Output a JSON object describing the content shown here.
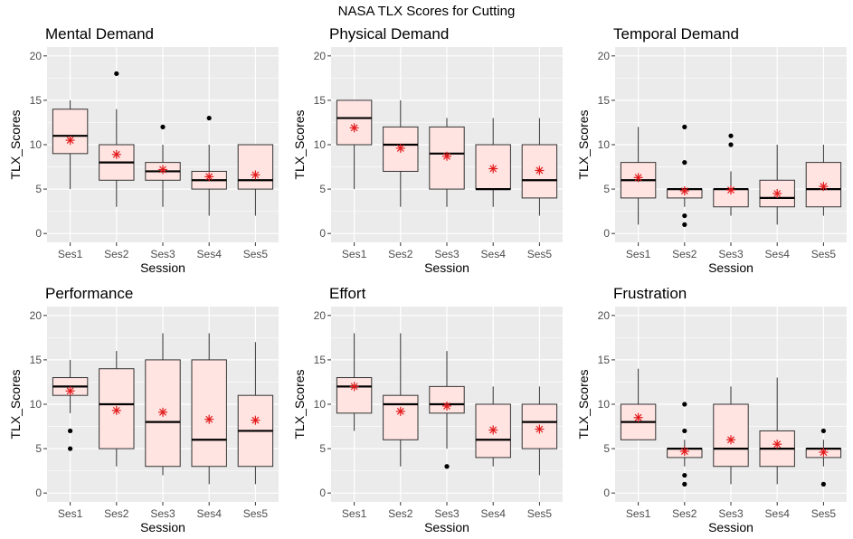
{
  "title": "NASA TLX Scores for Cutting",
  "chart_data": {
    "type": "boxplot",
    "title": "NASA TLX Scores for Cutting",
    "xlabel": "Session",
    "ylabel": "TLX_Scores",
    "categories": [
      "Ses1",
      "Ses2",
      "Ses3",
      "Ses4",
      "Ses5"
    ],
    "ylim": [
      -1,
      21
    ],
    "yticks": [
      0,
      5,
      10,
      15,
      20
    ],
    "grid": true,
    "colors": {
      "panel_bg": "#ebebeb",
      "grid": "#ffffff",
      "box_fill": "#ffe4e1",
      "mean_marker": "#e31a1c",
      "outline": "#000000"
    },
    "panels": [
      {
        "name": "Mental Demand",
        "boxes": [
          {
            "category": "Ses1",
            "whisker_low": 5,
            "q1": 9,
            "median": 11,
            "q3": 14,
            "whisker_high": 15,
            "mean": 10.5,
            "outliers": []
          },
          {
            "category": "Ses2",
            "whisker_low": 3,
            "q1": 6,
            "median": 8,
            "q3": 10,
            "whisker_high": 14,
            "mean": 8.9,
            "outliers": [
              18
            ]
          },
          {
            "category": "Ses3",
            "whisker_low": 3,
            "q1": 6,
            "median": 7,
            "q3": 8,
            "whisker_high": 10,
            "mean": 7.2,
            "outliers": [
              12
            ]
          },
          {
            "category": "Ses4",
            "whisker_low": 2,
            "q1": 5,
            "median": 6,
            "q3": 7,
            "whisker_high": 10,
            "mean": 6.4,
            "outliers": [
              13
            ]
          },
          {
            "category": "Ses5",
            "whisker_low": 2,
            "q1": 5,
            "median": 6,
            "q3": 10,
            "whisker_high": 10,
            "mean": 6.6,
            "outliers": []
          }
        ]
      },
      {
        "name": "Physical Demand",
        "boxes": [
          {
            "category": "Ses1",
            "whisker_low": 5,
            "q1": 10,
            "median": 13,
            "q3": 15,
            "whisker_high": 15,
            "mean": 11.9,
            "outliers": []
          },
          {
            "category": "Ses2",
            "whisker_low": 3,
            "q1": 7,
            "median": 10,
            "q3": 12,
            "whisker_high": 15,
            "mean": 9.6,
            "outliers": []
          },
          {
            "category": "Ses3",
            "whisker_low": 3,
            "q1": 5,
            "median": 9,
            "q3": 12,
            "whisker_high": 13,
            "mean": 8.7,
            "outliers": []
          },
          {
            "category": "Ses4",
            "whisker_low": 3,
            "q1": 5,
            "median": 5,
            "q3": 10,
            "whisker_high": 13,
            "mean": 7.3,
            "outliers": []
          },
          {
            "category": "Ses5",
            "whisker_low": 2,
            "q1": 4,
            "median": 6,
            "q3": 10,
            "whisker_high": 13,
            "mean": 7.1,
            "outliers": []
          }
        ]
      },
      {
        "name": "Temporal Demand",
        "boxes": [
          {
            "category": "Ses1",
            "whisker_low": 1,
            "q1": 4,
            "median": 6,
            "q3": 8,
            "whisker_high": 12,
            "mean": 6.3,
            "outliers": []
          },
          {
            "category": "Ses2",
            "whisker_low": 3,
            "q1": 4,
            "median": 5,
            "q3": 5,
            "whisker_high": 5,
            "mean": 4.8,
            "outliers": [
              12,
              8,
              2,
              1
            ]
          },
          {
            "category": "Ses3",
            "whisker_low": 2,
            "q1": 3,
            "median": 5,
            "q3": 5,
            "whisker_high": 7,
            "mean": 4.9,
            "outliers": [
              11,
              10
            ]
          },
          {
            "category": "Ses4",
            "whisker_low": 1,
            "q1": 3,
            "median": 4,
            "q3": 6,
            "whisker_high": 10,
            "mean": 4.5,
            "outliers": []
          },
          {
            "category": "Ses5",
            "whisker_low": 2,
            "q1": 3,
            "median": 5,
            "q3": 8,
            "whisker_high": 10,
            "mean": 5.3,
            "outliers": []
          }
        ]
      },
      {
        "name": "Performance",
        "boxes": [
          {
            "category": "Ses1",
            "whisker_low": 9,
            "q1": 11,
            "median": 12,
            "q3": 13,
            "whisker_high": 15,
            "mean": 11.5,
            "outliers": [
              7,
              5
            ]
          },
          {
            "category": "Ses2",
            "whisker_low": 3,
            "q1": 5,
            "median": 10,
            "q3": 14,
            "whisker_high": 16,
            "mean": 9.3,
            "outliers": []
          },
          {
            "category": "Ses3",
            "whisker_low": 2,
            "q1": 3,
            "median": 8,
            "q3": 15,
            "whisker_high": 18,
            "mean": 9.1,
            "outliers": []
          },
          {
            "category": "Ses4",
            "whisker_low": 1,
            "q1": 3,
            "median": 6,
            "q3": 15,
            "whisker_high": 18,
            "mean": 8.3,
            "outliers": []
          },
          {
            "category": "Ses5",
            "whisker_low": 1,
            "q1": 3,
            "median": 7,
            "q3": 11,
            "whisker_high": 17,
            "mean": 8.2,
            "outliers": []
          }
        ]
      },
      {
        "name": "Effort",
        "boxes": [
          {
            "category": "Ses1",
            "whisker_low": 7,
            "q1": 9,
            "median": 12,
            "q3": 13,
            "whisker_high": 18,
            "mean": 12,
            "outliers": []
          },
          {
            "category": "Ses2",
            "whisker_low": 3,
            "q1": 6,
            "median": 10,
            "q3": 11,
            "whisker_high": 18,
            "mean": 9.2,
            "outliers": []
          },
          {
            "category": "Ses3",
            "whisker_low": 5,
            "q1": 9,
            "median": 10,
            "q3": 12,
            "whisker_high": 16,
            "mean": 9.8,
            "outliers": [
              3
            ]
          },
          {
            "category": "Ses4",
            "whisker_low": 3,
            "q1": 4,
            "median": 6,
            "q3": 10,
            "whisker_high": 12,
            "mean": 7.1,
            "outliers": []
          },
          {
            "category": "Ses5",
            "whisker_low": 2,
            "q1": 5,
            "median": 8,
            "q3": 10,
            "whisker_high": 12,
            "mean": 7.2,
            "outliers": []
          }
        ]
      },
      {
        "name": "Frustration",
        "boxes": [
          {
            "category": "Ses1",
            "whisker_low": 6,
            "q1": 6,
            "median": 8,
            "q3": 10,
            "whisker_high": 14,
            "mean": 8.5,
            "outliers": []
          },
          {
            "category": "Ses2",
            "whisker_low": 3,
            "q1": 4,
            "median": 5,
            "q3": 5,
            "whisker_high": 6,
            "mean": 4.7,
            "outliers": [
              10,
              7,
              2,
              1
            ]
          },
          {
            "category": "Ses3",
            "whisker_low": 1,
            "q1": 3,
            "median": 5,
            "q3": 10,
            "whisker_high": 12,
            "mean": 6,
            "outliers": []
          },
          {
            "category": "Ses4",
            "whisker_low": 1,
            "q1": 3,
            "median": 5,
            "q3": 7,
            "whisker_high": 13,
            "mean": 5.5,
            "outliers": []
          },
          {
            "category": "Ses5",
            "whisker_low": 3,
            "q1": 4,
            "median": 5,
            "q3": 5,
            "whisker_high": 6,
            "mean": 4.6,
            "outliers": [
              7,
              1
            ]
          }
        ]
      }
    ]
  }
}
